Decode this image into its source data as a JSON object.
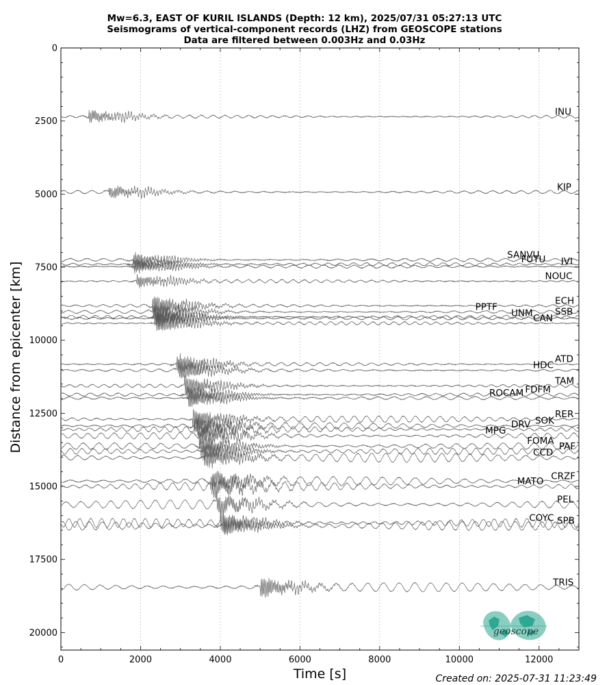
{
  "chart_data": {
    "type": "line",
    "title_lines": [
      "Mw=6.3, EAST OF KURIL ISLANDS (Depth: 12 km), 2025/07/31 05:27:13 UTC",
      "Seismograms of vertical-component records (LHZ) from GEOSCOPE stations",
      "Data are filtered between 0.003Hz and 0.03Hz"
    ],
    "xlabel": "Time [s]",
    "ylabel": "Distance from epicenter [km]",
    "xlim": [
      0,
      13000
    ],
    "ylim": [
      0,
      20600
    ],
    "y_inverted": true,
    "x_ticks": [
      0,
      2000,
      4000,
      6000,
      8000,
      10000,
      12000
    ],
    "x_tick_labels": [
      "0",
      "2000",
      "4000",
      "6000",
      "8000",
      "10000",
      "12000"
    ],
    "y_ticks": [
      0,
      2500,
      5000,
      7500,
      10000,
      12500,
      15000,
      17500,
      20000
    ],
    "y_tick_labels": [
      "0",
      "2500",
      "5000",
      "7500",
      "10000",
      "12500",
      "15000",
      "17500",
      "20000"
    ],
    "vertical_grid": true,
    "trace_color": "#555555",
    "stations": [
      {
        "name": "INU",
        "distance": 2350,
        "arrival": 700,
        "label_time": 12400
      },
      {
        "name": "KIP",
        "distance": 4930,
        "arrival": 1200,
        "label_time": 12450
      },
      {
        "name": "SANVU",
        "distance": 7250,
        "arrival": 1800,
        "label_time": 11200
      },
      {
        "name": "FUTU",
        "distance": 7400,
        "arrival": 1800,
        "label_time": 11550
      },
      {
        "name": "IVI",
        "distance": 7480,
        "arrival": 1850,
        "label_time": 12550
      },
      {
        "name": "NOUC",
        "distance": 7980,
        "arrival": 1900,
        "label_time": 12150
      },
      {
        "name": "ECH",
        "distance": 8820,
        "arrival": 2300,
        "label_time": 12400
      },
      {
        "name": "PPTF",
        "distance": 9030,
        "arrival": 2300,
        "label_time": 10400
      },
      {
        "name": "SSB",
        "distance": 9200,
        "arrival": 2350,
        "label_time": 12400
      },
      {
        "name": "UNM",
        "distance": 9250,
        "arrival": 2350,
        "label_time": 11300
      },
      {
        "name": "CAN",
        "distance": 9420,
        "arrival": 2400,
        "label_time": 11850
      },
      {
        "name": "ATD",
        "distance": 10820,
        "arrival": 2900,
        "label_time": 12400
      },
      {
        "name": "HDC",
        "distance": 11030,
        "arrival": 2950,
        "label_time": 11850
      },
      {
        "name": "TAM",
        "distance": 11560,
        "arrival": 3100,
        "label_time": 12400
      },
      {
        "name": "FDFM",
        "distance": 11860,
        "arrival": 3150,
        "label_time": 11650
      },
      {
        "name": "ROCAM",
        "distance": 11980,
        "arrival": 3200,
        "label_time": 10750
      },
      {
        "name": "RER",
        "distance": 12700,
        "arrival": 3300,
        "label_time": 12400
      },
      {
        "name": "SOK",
        "distance": 12930,
        "arrival": 3350,
        "label_time": 11900
      },
      {
        "name": "DRV",
        "distance": 13050,
        "arrival": 3400,
        "label_time": 11300
      },
      {
        "name": "MPG",
        "distance": 13270,
        "arrival": 3450,
        "label_time": 10650
      },
      {
        "name": "FOMA",
        "distance": 13620,
        "arrival": 3500,
        "label_time": 11700
      },
      {
        "name": "PAF",
        "distance": 13800,
        "arrival": 3550,
        "label_time": 12500
      },
      {
        "name": "CCD",
        "distance": 14020,
        "arrival": 3600,
        "label_time": 11850
      },
      {
        "name": "CRZF",
        "distance": 14820,
        "arrival": 3750,
        "label_time": 12300
      },
      {
        "name": "MATO",
        "distance": 15000,
        "arrival": 3800,
        "label_time": 11450
      },
      {
        "name": "PEL",
        "distance": 15620,
        "arrival": 3900,
        "label_time": 12450
      },
      {
        "name": "COYC",
        "distance": 16250,
        "arrival": 4000,
        "label_time": 11750
      },
      {
        "name": "SPB",
        "distance": 16350,
        "arrival": 4050,
        "label_time": 12450
      },
      {
        "name": "TRIS",
        "distance": 18450,
        "arrival": 5000,
        "label_time": 12350
      }
    ]
  },
  "logo": {
    "text": "geoscope",
    "color": "#2aa58f"
  },
  "footer": {
    "created": "Created on: 2025-07-31 11:23:49"
  }
}
